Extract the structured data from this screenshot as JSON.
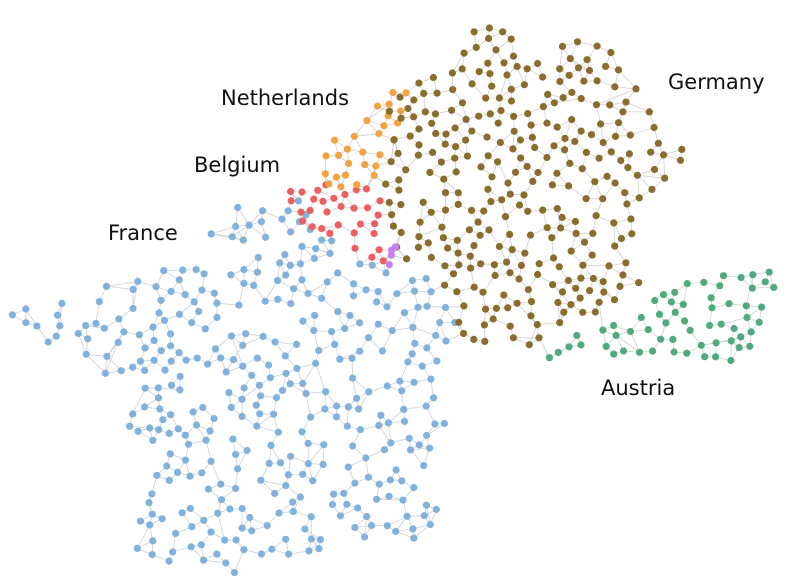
{
  "colors": {
    "edge": "#cfcfcf",
    "label": "#111111",
    "France": "#7fb2dc",
    "Belgium": "#ec6060",
    "Netherlands": "#f4a340",
    "Germany": "#8a6d2b",
    "Austria": "#4faa7e",
    "Luxembourg": "#c77ff0"
  },
  "labels": {
    "netherlands": "Netherlands",
    "belgium": "Belgium",
    "france": "France",
    "germany": "Germany",
    "austria": "Austria"
  }
}
